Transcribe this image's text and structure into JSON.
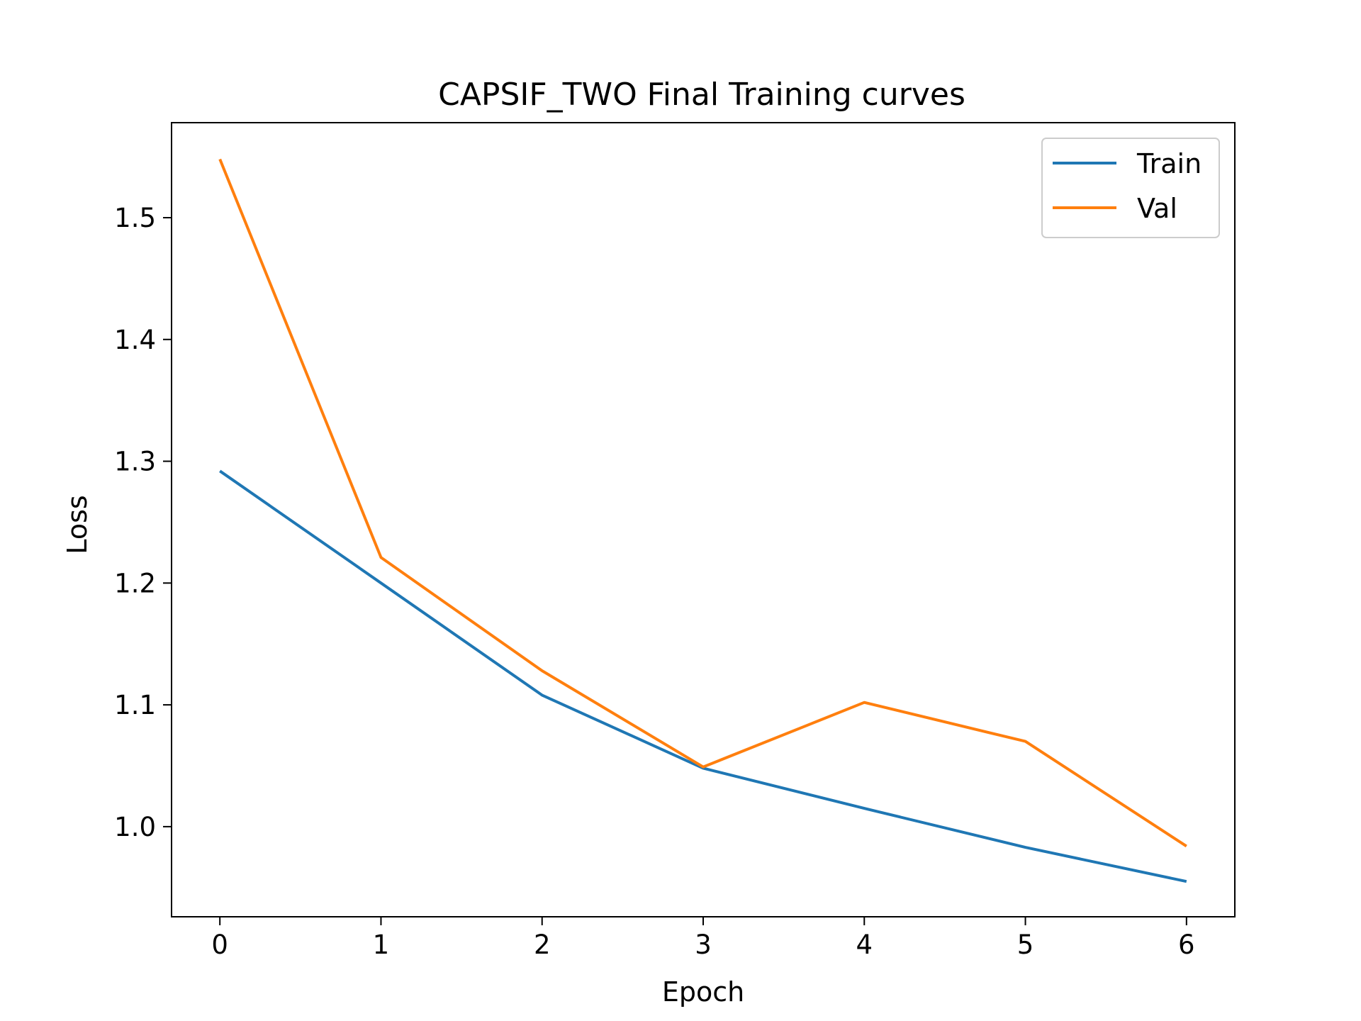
{
  "chart_data": {
    "type": "line",
    "title": "CAPSIF_TWO Final Training curves",
    "xlabel": "Epoch",
    "ylabel": "Loss",
    "x": [
      0,
      1,
      2,
      3,
      4,
      5,
      6
    ],
    "xticks": [
      0,
      1,
      2,
      3,
      4,
      5,
      6
    ],
    "yticks": [
      1.0,
      1.1,
      1.2,
      1.3,
      1.4,
      1.5
    ],
    "xlim": [
      -0.3,
      6.3
    ],
    "ylim": [
      0.926,
      1.578
    ],
    "grid": false,
    "legend_position": "top-right",
    "series": [
      {
        "name": "Train",
        "color": "#1f77b4",
        "values": [
          1.292,
          1.2,
          1.108,
          1.048,
          1.015,
          0.983,
          0.955
        ]
      },
      {
        "name": "Val",
        "color": "#ff7f0e",
        "values": [
          1.548,
          1.221,
          1.128,
          1.049,
          1.102,
          1.07,
          0.984
        ]
      }
    ]
  }
}
